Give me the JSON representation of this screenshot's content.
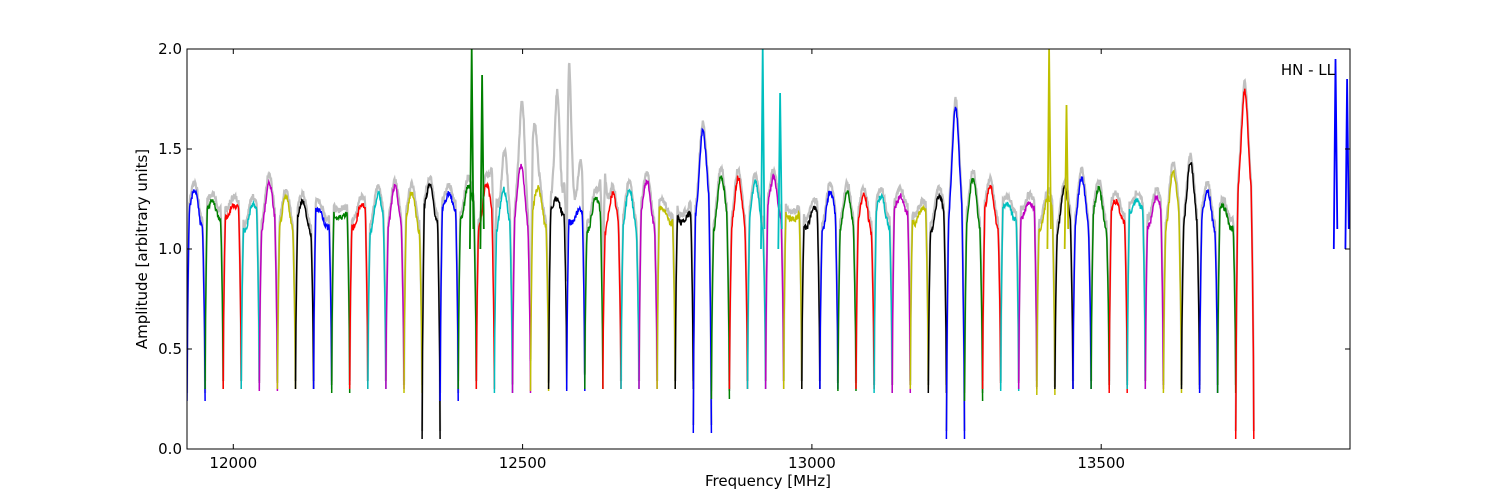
{
  "chart_data": {
    "type": "line",
    "title": "",
    "xlabel": "Frequency [MHz]",
    "ylabel": "Amplitude [arbitrary units]",
    "xlim": [
      11920,
      13930
    ],
    "ylim": [
      0,
      2.0
    ],
    "xticks": [
      12000,
      12500,
      13000,
      13500
    ],
    "yticks": [
      0.0,
      0.5,
      1.0,
      1.5,
      2.0
    ],
    "xtick_labels": [
      "12000",
      "12500",
      "13000",
      "13500"
    ],
    "ytick_labels": [
      "0.0",
      "0.5",
      "1.0",
      "1.5",
      "2.0"
    ],
    "annotation": "HN - LL",
    "grid": false,
    "legend": "none",
    "channel_width_mhz": 31.25,
    "color_cycle": [
      "#0000ff",
      "#008000",
      "#ff0000",
      "#00bfbf",
      "#bf00bf",
      "#bfbf00",
      "#000000"
    ],
    "background_series": {
      "color": "#c0c0c0",
      "peaks": [
        {
          "x": 12580,
          "y": 2.0
        },
        {
          "x": 12560,
          "y": 1.75
        },
        {
          "x": 12520,
          "y": 1.6
        },
        {
          "x": 12500,
          "y": 1.55
        },
        {
          "x": 12450,
          "y": 1.5
        },
        {
          "x": 12640,
          "y": 1.55
        },
        {
          "x": 12600,
          "y": 1.45
        },
        {
          "x": 12470,
          "y": 1.42
        }
      ]
    },
    "channel_peaks": [
      1.28,
      1.28,
      1.27,
      1.2,
      1.28,
      1.2,
      1.2,
      1.2,
      1.22,
      1.22,
      1.23,
      1.25,
      1.24,
      1.33,
      1.34,
      1.35,
      1.3,
      1.24,
      1.37,
      1.3,
      1.3,
      1.22,
      1.23,
      1.22,
      1.24,
      1.32,
      1.22,
      1.2,
      1.6,
      1.32,
      1.3,
      1.3,
      1.38,
      1.21,
      1.2,
      1.25,
      1.23,
      1.22,
      1.26,
      1.32,
      1.22,
      1.24,
      1.65,
      1.3,
      1.3,
      1.26,
      1.28,
      1.24,
      1.25,
      1.3,
      1.27,
      1.26,
      1.3,
      1.26,
      1.35,
      1.37,
      1.25,
      1.2,
      1.85
    ],
    "channel_troughs": [
      0.24,
      0.3,
      0.3,
      0.3,
      0.29,
      0.3,
      0.3,
      0.3,
      0.28,
      0.3,
      0.3,
      0.3,
      0.28,
      0.05,
      0.24,
      0.3,
      0.3,
      0.28,
      0.28,
      0.29,
      0.3,
      0.29,
      0.3,
      0.3,
      0.3,
      0.3,
      0.3,
      0.3,
      0.08,
      0.25,
      0.3,
      0.3,
      0.3,
      0.3,
      0.3,
      0.3,
      0.29,
      0.3,
      0.28,
      0.28,
      0.3,
      0.28,
      0.05,
      0.24,
      0.3,
      0.29,
      0.3,
      0.27,
      0.3,
      0.3,
      0.3,
      0.28,
      0.3,
      0.3,
      0.28,
      0.3,
      0.28,
      0.28,
      0.05
    ],
    "spikes": [
      {
        "x": 12412,
        "y": 2.0,
        "color": "#008000"
      },
      {
        "x": 12430,
        "y": 1.87,
        "color": "#008000"
      },
      {
        "x": 12915,
        "y": 2.0,
        "color": "#00bfbf"
      },
      {
        "x": 12945,
        "y": 1.78,
        "color": "#00bfbf"
      },
      {
        "x": 13410,
        "y": 2.0,
        "color": "#bfbf00"
      },
      {
        "x": 13440,
        "y": 1.72,
        "color": "#bfbf00"
      },
      {
        "x": 13905,
        "y": 1.95,
        "color": "#0000ff"
      },
      {
        "x": 13925,
        "y": 1.85,
        "color": "#0000ff"
      }
    ]
  }
}
